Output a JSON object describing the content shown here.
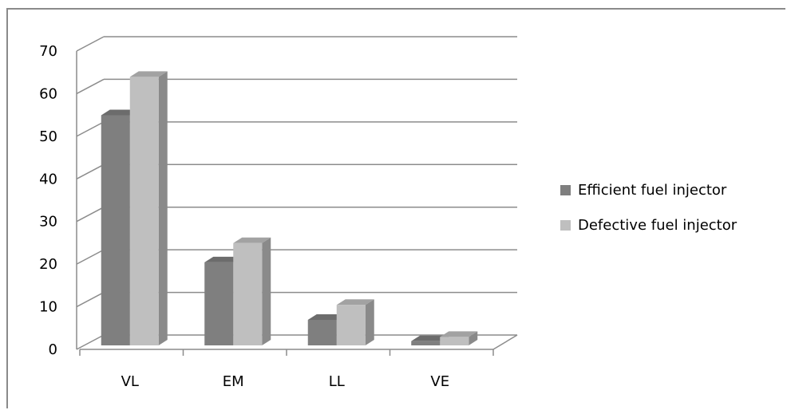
{
  "chart_data": {
    "type": "bar",
    "categories": [
      "VL",
      "EM",
      "LL",
      "VE"
    ],
    "series": [
      {
        "name": "Efficient fuel injector",
        "values": [
          54,
          19.5,
          6,
          1
        ],
        "color": "#7f7f7f"
      },
      {
        "name": "Defective fuel injector",
        "values": [
          63,
          24,
          9.5,
          2
        ],
        "color": "#bfbfbf"
      }
    ],
    "y_ticks": [
      "0",
      "10",
      "20",
      "30",
      "40",
      "50",
      "60",
      "70"
    ],
    "ylim": [
      0,
      70
    ],
    "grid": true,
    "legend_position": "right"
  }
}
